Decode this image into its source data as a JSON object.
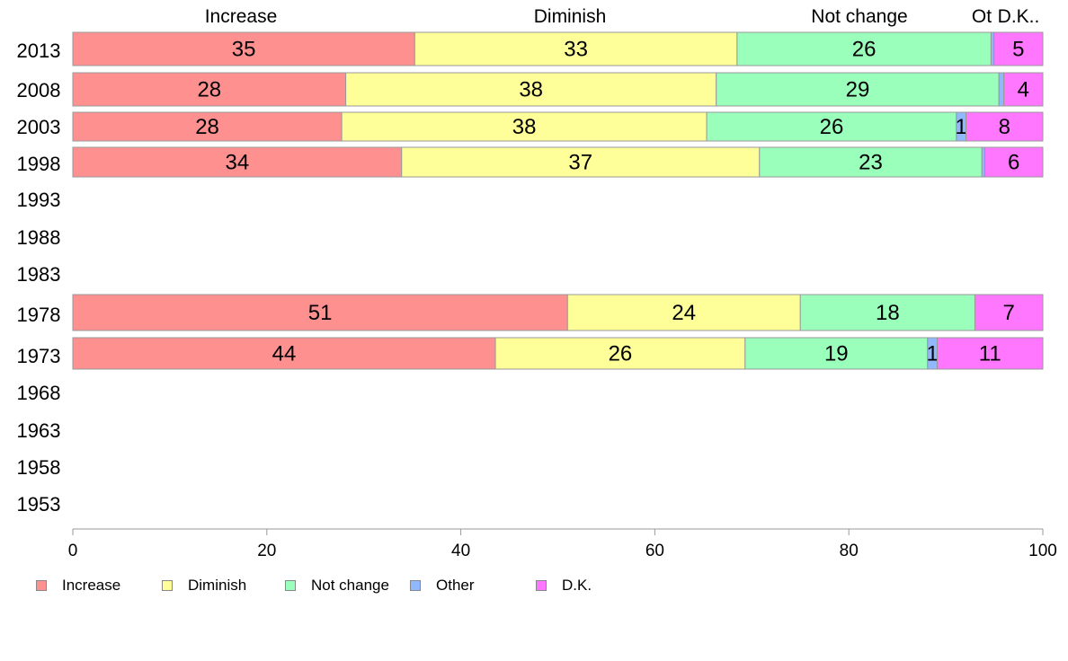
{
  "chart_data": {
    "type": "bar",
    "orientation": "horizontal",
    "stacked": true,
    "categories": [
      "2013",
      "2008",
      "2003",
      "1998",
      "1993",
      "1988",
      "1983",
      "1978",
      "1973",
      "1968",
      "1963",
      "1958",
      "1953"
    ],
    "series": [
      {
        "name": "Increase",
        "color": "#ff9090",
        "values": [
          35,
          28,
          28,
          34,
          null,
          null,
          null,
          51,
          44,
          null,
          null,
          null,
          null
        ]
      },
      {
        "name": "Diminish",
        "color": "#ffff99",
        "values": [
          33,
          38,
          38,
          37,
          null,
          null,
          null,
          24,
          26,
          null,
          null,
          null,
          null
        ]
      },
      {
        "name": "Not change",
        "color": "#99ffbb",
        "values": [
          26,
          29,
          26,
          23,
          null,
          null,
          null,
          18,
          19,
          null,
          null,
          null,
          null
        ]
      },
      {
        "name": "Other",
        "color": "#90b8ff",
        "values": [
          0.3,
          0.5,
          1,
          0.3,
          null,
          null,
          null,
          0,
          1,
          null,
          null,
          null,
          null
        ]
      },
      {
        "name": "D.K.",
        "color": "#ff77ff",
        "values": [
          5,
          4,
          8,
          6,
          null,
          null,
          null,
          7,
          11,
          null,
          null,
          null,
          null
        ]
      }
    ],
    "bar_labels": [
      [
        "35",
        "33",
        "26",
        "",
        "5"
      ],
      [
        "28",
        "38",
        "29",
        "",
        "4"
      ],
      [
        "28",
        "38",
        "26",
        "1",
        "8"
      ],
      [
        "34",
        "37",
        "23",
        "",
        "6"
      ],
      [
        "",
        "",
        "",
        "",
        ""
      ],
      [
        "",
        "",
        "",
        "",
        ""
      ],
      [
        "",
        "",
        "",
        "",
        ""
      ],
      [
        "51",
        "24",
        "18",
        "",
        "7"
      ],
      [
        "44",
        "26",
        "19",
        "1",
        "11"
      ],
      [
        "",
        "",
        "",
        "",
        ""
      ],
      [
        "",
        "",
        "",
        "",
        ""
      ],
      [
        "",
        "",
        "",
        "",
        ""
      ],
      [
        "",
        "",
        "",
        "",
        ""
      ]
    ],
    "top_labels": [
      "Increase",
      "Diminish",
      "Not change",
      "Ot",
      "D.K.."
    ],
    "xlim": [
      0,
      100
    ],
    "xticks": [
      0,
      20,
      40,
      60,
      80,
      100
    ],
    "grid": false,
    "legend_position": "bottom"
  }
}
